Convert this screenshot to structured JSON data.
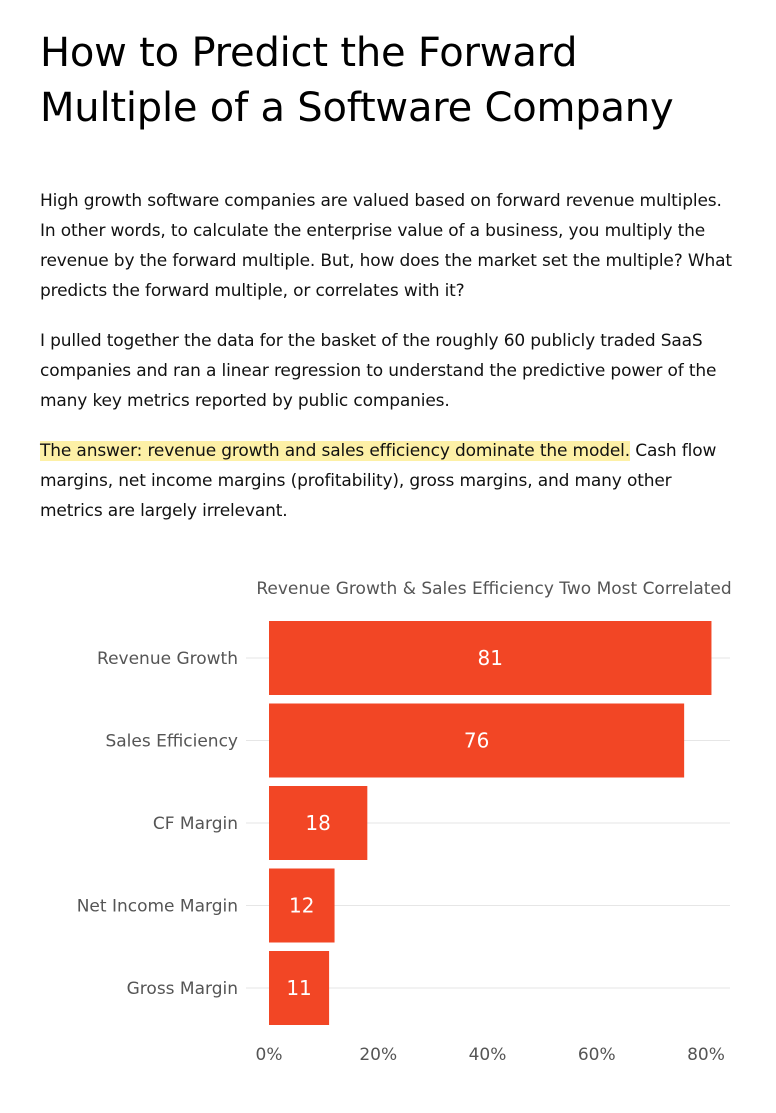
{
  "article": {
    "title_line1": "How to Predict the Forward",
    "title_line2": "Multiple of a Software Company",
    "paragraph1": "High growth software companies are valued based on forward revenue multiples. In other words, to calculate the enterprise value of a business, you multiply the revenue by the forward multiple. But, how does the market set the multiple? What predicts the forward multiple, or correlates with it?",
    "paragraph2": "I pulled together the data for the basket of the roughly 60 publicly traded SaaS companies and ran a linear regression to understand the predictive power of the many key metrics reported by public companies.",
    "paragraph3_highlight": "The answer: revenue growth and sales efficiency dominate the model.",
    "paragraph3_rest": " Cash flow margins, net income margins (profitability), gross margins, and many other metrics are largely irrelevant."
  },
  "colors": {
    "bar": "#f24625",
    "highlight": "#fdf0a6",
    "gridline": "#e6e6e6",
    "label_text": "#555555"
  },
  "chart_data": {
    "type": "bar",
    "orientation": "horizontal",
    "title": "Revenue Growth & Sales Efficiency Two Most Correlated",
    "categories": [
      "Revenue Growth",
      "Sales Efficiency",
      "CF Margin",
      "Net Income Margin",
      "Gross Margin"
    ],
    "values": [
      81,
      76,
      18,
      12,
      11
    ],
    "data_labels": [
      "81",
      "76",
      "18",
      "12",
      "11"
    ],
    "xlim": [
      0,
      84
    ],
    "x_ticks": [
      0,
      20,
      40,
      60,
      80
    ],
    "x_tick_labels": [
      "0%",
      "20%",
      "40%",
      "60%",
      "80%"
    ],
    "grid": true,
    "legend": "none"
  }
}
